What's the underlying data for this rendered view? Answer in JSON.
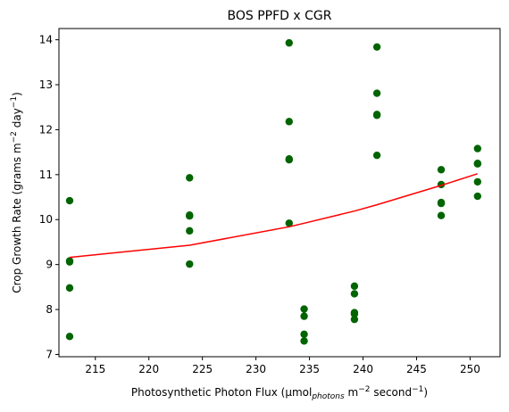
{
  "chart_data": {
    "type": "scatter",
    "title": "BOS PPFD x CGR",
    "xlabel": {
      "pre": "Photosynthetic Photon Flux (µmol",
      "sub": "photons",
      "mid": " m",
      "sup1": "−2",
      "mid2": " second",
      "sup2": "−1",
      "post": ")"
    },
    "ylabel": {
      "pre": "Crop Growth Rate (grams m",
      "sup1": "−2",
      "mid": " day",
      "sup2": "−1",
      "post": ")"
    },
    "xlim": [
      211.6,
      252.8
    ],
    "ylim": [
      6.95,
      14.25
    ],
    "xticks": [
      "215",
      "220",
      "225",
      "230",
      "235",
      "240",
      "245",
      "250"
    ],
    "yticks": [
      "7",
      "8",
      "9",
      "10",
      "11",
      "12",
      "13",
      "14"
    ],
    "grid": false,
    "series": [
      {
        "kind": "scatter",
        "color": "#006400",
        "points": [
          [
            212.6,
            10.42
          ],
          [
            212.6,
            9.08
          ],
          [
            212.6,
            9.06
          ],
          [
            212.6,
            8.48
          ],
          [
            212.6,
            7.4
          ],
          [
            223.8,
            10.93
          ],
          [
            223.8,
            10.1
          ],
          [
            223.8,
            10.08
          ],
          [
            223.8,
            9.75
          ],
          [
            223.8,
            9.01
          ],
          [
            233.1,
            13.93
          ],
          [
            233.1,
            12.18
          ],
          [
            233.1,
            11.35
          ],
          [
            233.1,
            11.33
          ],
          [
            233.1,
            9.92
          ],
          [
            234.5,
            8.01
          ],
          [
            234.5,
            7.85
          ],
          [
            234.5,
            7.45
          ],
          [
            234.5,
            7.3
          ],
          [
            239.2,
            8.52
          ],
          [
            239.2,
            8.35
          ],
          [
            239.2,
            7.93
          ],
          [
            239.2,
            7.9
          ],
          [
            239.2,
            7.78
          ],
          [
            241.3,
            13.84
          ],
          [
            241.3,
            12.81
          ],
          [
            241.3,
            12.34
          ],
          [
            241.3,
            12.32
          ],
          [
            241.3,
            11.43
          ],
          [
            247.3,
            11.11
          ],
          [
            247.3,
            10.78
          ],
          [
            247.3,
            10.38
          ],
          [
            247.3,
            10.36
          ],
          [
            247.3,
            10.09
          ],
          [
            250.7,
            11.58
          ],
          [
            250.7,
            11.25
          ],
          [
            250.7,
            11.24
          ],
          [
            250.7,
            10.84
          ],
          [
            250.7,
            10.52
          ]
        ]
      },
      {
        "kind": "line",
        "color": "#ff0000",
        "points": [
          [
            212.6,
            9.16
          ],
          [
            223.8,
            9.43
          ],
          [
            233.1,
            9.84
          ],
          [
            234.5,
            9.92
          ],
          [
            239.2,
            10.19
          ],
          [
            241.3,
            10.33
          ],
          [
            247.3,
            10.76
          ],
          [
            250.7,
            11.02
          ]
        ]
      }
    ]
  }
}
